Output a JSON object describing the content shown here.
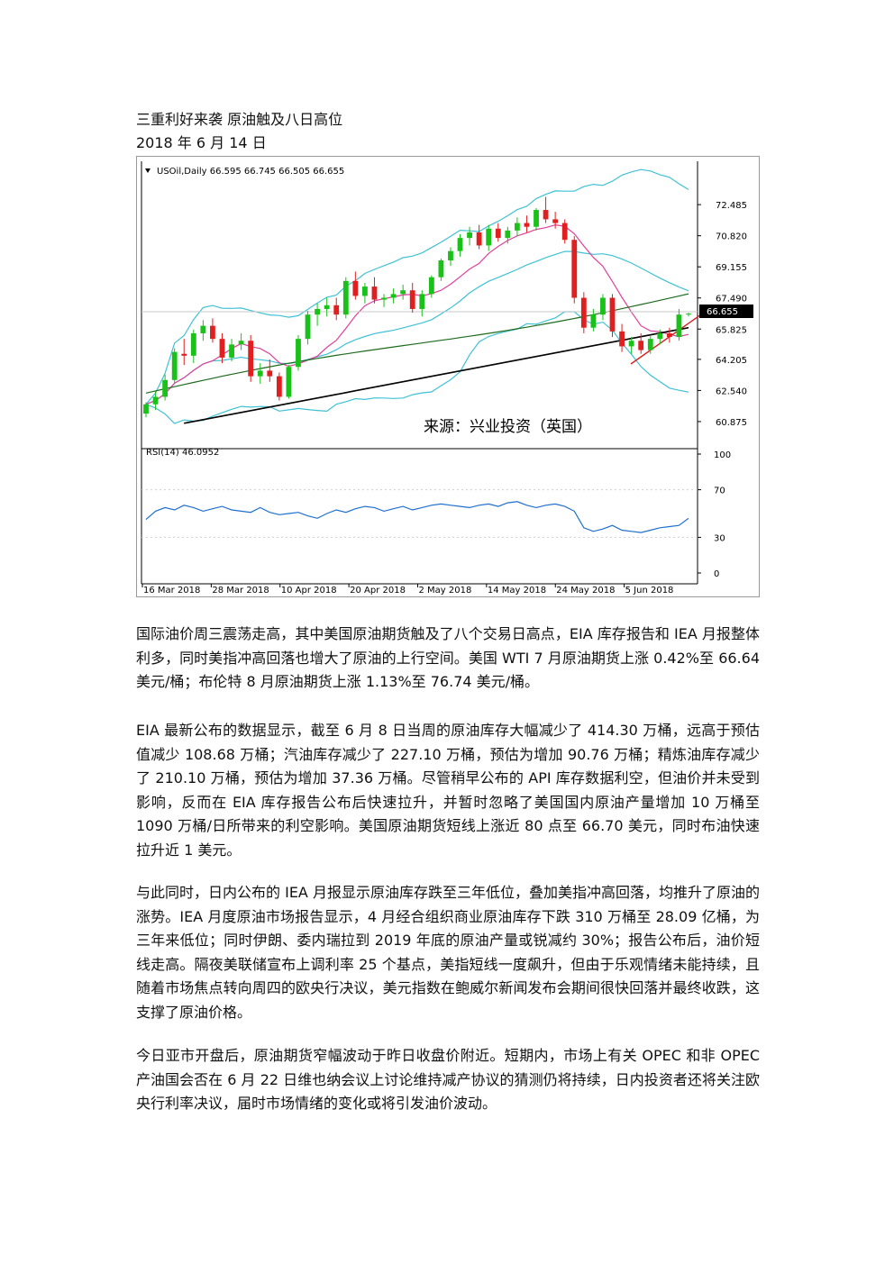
{
  "article": {
    "title": "三重利好来袭 原油触及八日高位",
    "date": "2018 年 6 月 14 日",
    "paragraphs": [
      "国际油价周三震荡走高，其中美国原油期货触及了八个交易日高点，EIA 库存报告和 IEA 月报整体利多，同时美指冲高回落也增大了原油的上行空间。美国 WTI 7 月原油期货上涨 0.42%至 66.64 美元/桶；布伦特 8 月原油期货上涨 1.13%至 76.74 美元/桶。",
      "EIA 最新公布的数据显示，截至 6 月 8 日当周的原油库存大幅减少了 414.30 万桶，远高于预估值减少 108.68 万桶；汽油库存减少了 227.10 万桶，预估为增加 90.76 万桶；精炼油库存减少了 210.10 万桶，预估为增加 37.36 万桶。尽管稍早公布的 API 库存数据利空，但油价并未受到影响，反而在 EIA 库存报告公布后快速拉升，并暂时忽略了美国国内原油产量增加 10 万桶至 1090 万桶/日所带来的利空影响。美国原油期货短线上涨近 80 点至 66.70 美元，同时布油快速拉升近 1 美元。",
      "与此同时，日内公布的 IEA 月报显示原油库存跌至三年低位，叠加美指冲高回落，均推升了原油的涨势。IEA 月度原油市场报告显示，4 月经合组织商业原油库存下跌 310 万桶至 28.09 亿桶，为三年来低位；同时伊朗、委内瑞拉到 2019 年底的原油产量或锐减约 30%；报告公布后，油价短线走高。隔夜美联储宣布上调利率 25 个基点，美指短线一度飙升，但由于乐观情绪未能持续，且随着市场焦点转向周四的欧央行决议，美元指数在鲍威尔新闻发布会期间很快回落并最终收跌，这支撑了原油价格。",
      "今日亚市开盘后，原油期货窄幅波动于昨日收盘价附近。短期内，市场上有关 OPEC 和非 OPEC 产油国会否在 6 月 22 日维也纳会议上讨论维持减产协议的猜测仍将持续，日内投资者还将关注欧央行利率决议，届时市场情绪的变化或将引发油价波动。"
    ]
  },
  "chart_data": {
    "type": "candlestick",
    "header": "USOil,Daily  66.595 66.745 66.505 66.655",
    "watermark": "来源：兴业投资（英国）",
    "price_axis": {
      "ticks": [
        "72.485",
        "70.820",
        "69.155",
        "67.490",
        "65.825",
        "64.205",
        "62.540",
        "60.875"
      ],
      "ylim": [
        60.1,
        73.6
      ]
    },
    "current_price": "66.655",
    "rsi": {
      "label": "RSI(14) 46.0952",
      "ticks": [
        "100",
        "70",
        "30",
        "0"
      ],
      "ylim": [
        0,
        100
      ]
    },
    "x_labels": [
      "16 Mar 2018",
      "28 Mar 2018",
      "10 Apr 2018",
      "20 Apr 2018",
      "2 May 2018",
      "14 May 2018",
      "24 May 2018",
      "5 Jun 2018"
    ],
    "candles": [
      [
        61.3,
        61.9,
        61.1,
        61.8
      ],
      [
        61.8,
        62.5,
        61.5,
        62.2
      ],
      [
        62.2,
        63.4,
        62.0,
        63.1
      ],
      [
        63.1,
        64.8,
        62.9,
        64.6
      ],
      [
        64.5,
        65.3,
        63.9,
        64.4
      ],
      [
        64.4,
        65.8,
        64.0,
        65.6
      ],
      [
        65.6,
        66.3,
        65.2,
        66.0
      ],
      [
        66.0,
        66.4,
        65.1,
        65.3
      ],
      [
        65.3,
        65.6,
        64.0,
        64.3
      ],
      [
        64.3,
        65.3,
        64.1,
        65.0
      ],
      [
        65.0,
        65.6,
        64.7,
        65.2
      ],
      [
        65.2,
        65.5,
        63.0,
        63.3
      ],
      [
        63.3,
        64.0,
        62.9,
        63.6
      ],
      [
        63.6,
        64.2,
        63.0,
        63.3
      ],
      [
        63.3,
        63.5,
        62.0,
        62.2
      ],
      [
        62.2,
        63.9,
        62.1,
        63.8
      ],
      [
        63.8,
        65.5,
        63.6,
        65.3
      ],
      [
        65.3,
        66.8,
        65.0,
        66.6
      ],
      [
        66.6,
        67.2,
        66.0,
        66.9
      ],
      [
        66.9,
        67.5,
        66.5,
        67.1
      ],
      [
        67.1,
        67.5,
        66.3,
        66.6
      ],
      [
        66.6,
        68.6,
        66.4,
        68.4
      ],
      [
        68.4,
        68.9,
        67.4,
        67.6
      ],
      [
        67.6,
        68.3,
        67.2,
        68.1
      ],
      [
        68.1,
        68.6,
        67.2,
        67.4
      ],
      [
        67.4,
        67.7,
        67.0,
        67.5
      ],
      [
        67.5,
        68.0,
        67.2,
        67.7
      ],
      [
        67.7,
        68.2,
        67.4,
        67.9
      ],
      [
        67.9,
        68.3,
        66.7,
        66.9
      ],
      [
        66.9,
        67.9,
        66.5,
        67.7
      ],
      [
        67.7,
        68.7,
        67.5,
        68.6
      ],
      [
        68.6,
        69.6,
        68.4,
        69.5
      ],
      [
        69.5,
        70.2,
        69.2,
        70.0
      ],
      [
        70.0,
        70.9,
        69.7,
        70.7
      ],
      [
        70.7,
        71.3,
        70.3,
        71.0
      ],
      [
        71.0,
        71.4,
        70.1,
        70.3
      ],
      [
        70.3,
        71.4,
        70.0,
        71.2
      ],
      [
        71.2,
        71.5,
        70.5,
        70.7
      ],
      [
        70.7,
        71.3,
        70.4,
        71.1
      ],
      [
        71.1,
        71.8,
        70.8,
        71.5
      ],
      [
        71.5,
        71.9,
        71.0,
        71.3
      ],
      [
        71.3,
        72.3,
        71.1,
        72.2
      ],
      [
        72.2,
        72.9,
        71.5,
        71.7
      ],
      [
        71.7,
        72.1,
        71.2,
        71.5
      ],
      [
        71.5,
        71.7,
        70.4,
        70.6
      ],
      [
        70.6,
        70.8,
        67.2,
        67.5
      ],
      [
        67.5,
        67.8,
        65.6,
        65.9
      ],
      [
        65.9,
        66.9,
        65.7,
        66.6
      ],
      [
        66.6,
        67.7,
        66.3,
        67.5
      ],
      [
        67.5,
        67.7,
        65.4,
        65.7
      ],
      [
        65.7,
        66.1,
        64.6,
        64.9
      ],
      [
        64.9,
        65.4,
        64.5,
        65.2
      ],
      [
        65.2,
        65.6,
        64.5,
        64.7
      ],
      [
        64.7,
        65.5,
        64.5,
        65.3
      ],
      [
        65.3,
        65.8,
        65.0,
        65.6
      ],
      [
        65.6,
        65.9,
        65.1,
        65.4
      ],
      [
        65.4,
        66.9,
        65.2,
        66.6
      ],
      [
        66.6,
        66.7,
        66.5,
        66.65
      ]
    ],
    "rsi_values": [
      45,
      52,
      55,
      53,
      57,
      55,
      52,
      54,
      56,
      53,
      52,
      51,
      55,
      51,
      49,
      50,
      51,
      48,
      46,
      50,
      53,
      51,
      54,
      56,
      55,
      52,
      54,
      56,
      53,
      55,
      57,
      58,
      57,
      56,
      55,
      57,
      58,
      56,
      59,
      60,
      57,
      55,
      57,
      58,
      56,
      52,
      38,
      35,
      37,
      40,
      36,
      35,
      34,
      36,
      38,
      39,
      40,
      46
    ]
  }
}
